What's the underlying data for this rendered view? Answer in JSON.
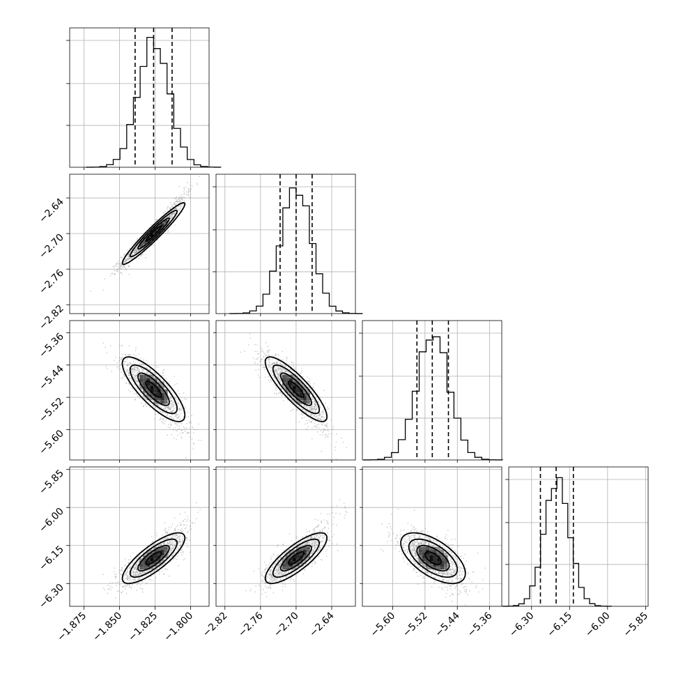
{
  "chart_data": {
    "type": "corner",
    "parameters": [
      {
        "ticks": [
          -1.875,
          -1.85,
          -1.825,
          -1.8
        ],
        "tick_labels": [
          "−1.875",
          "−1.850",
          "−1.825",
          "−1.800"
        ],
        "range": [
          -1.885,
          -1.787
        ],
        "mean": -1.826,
        "sd": 0.011,
        "quantiles": [
          -1.839,
          -1.826,
          -1.813
        ]
      },
      {
        "ticks": [
          -2.82,
          -2.76,
          -2.7,
          -2.64
        ],
        "tick_labels": [
          "−2.82",
          "−2.76",
          "−2.70",
          "−2.64"
        ],
        "range": [
          -2.835,
          -2.6
        ],
        "mean": -2.7,
        "sd": 0.026,
        "quantiles": [
          -2.727,
          -2.7,
          -2.673
        ]
      },
      {
        "ticks": [
          -5.6,
          -5.52,
          -5.44,
          -5.36
        ],
        "tick_labels": [
          "−5.60",
          "−5.52",
          "−5.44",
          "−5.36"
        ],
        "range": [
          -5.675,
          -5.33
        ],
        "mean": -5.5,
        "sd": 0.04,
        "quantiles": [
          -5.54,
          -5.502,
          -5.462
        ]
      },
      {
        "ticks": [
          -6.3,
          -6.15,
          -6.0,
          -5.85
        ],
        "tick_labels": [
          "−6.30",
          "−6.15",
          "−6.00",
          "−5.85"
        ],
        "range": [
          -6.39,
          -5.84
        ],
        "mean": -6.2,
        "sd": 0.05,
        "quantiles": [
          -6.265,
          -6.203,
          -6.135
        ]
      }
    ],
    "correlations": {
      "1-0": 0.96,
      "2-0": -0.8,
      "2-1": -0.85,
      "3-0": 0.8,
      "3-1": 0.8,
      "3-2": -0.6
    },
    "contour_levels_sigma": [
      0.5,
      1.0,
      1.5,
      2.0
    ],
    "samples_per_panel": 1400,
    "grid": true
  }
}
